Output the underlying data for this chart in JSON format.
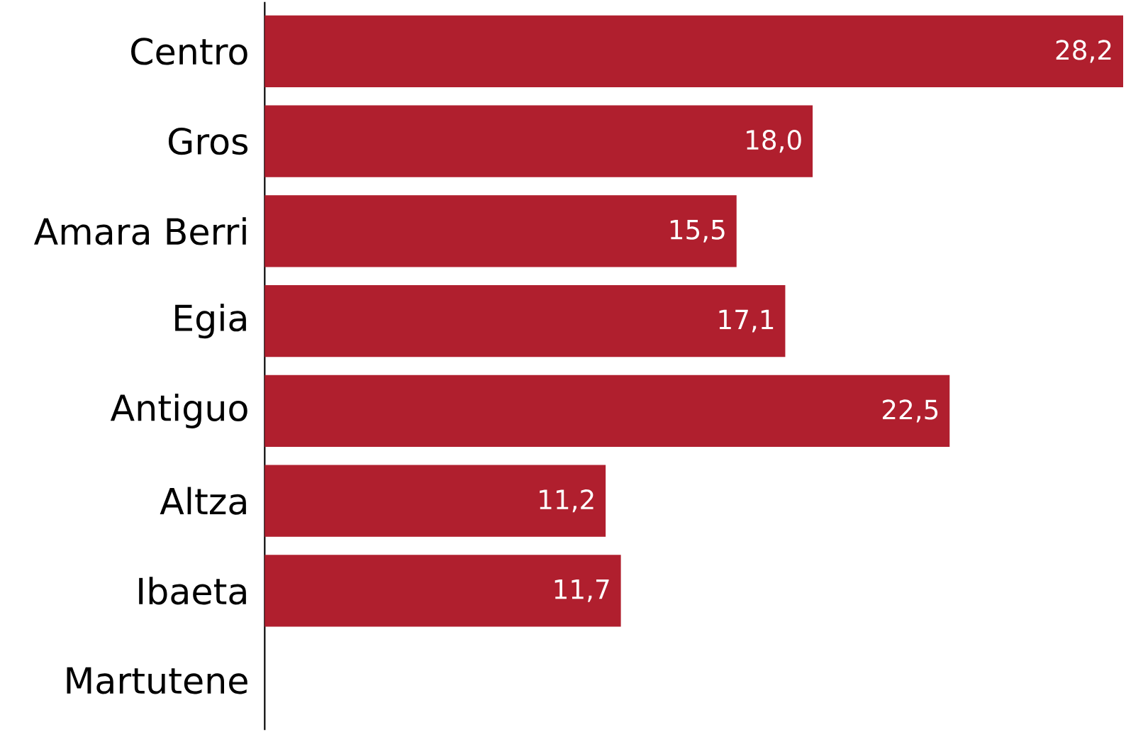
{
  "chart_data": {
    "type": "bar",
    "orientation": "horizontal",
    "categories": [
      "Centro",
      "Gros",
      "Amara Berri",
      "Egia",
      "Antiguo",
      "Altza",
      "Ibaeta",
      "Martutene"
    ],
    "values": [
      28.2,
      18.0,
      15.5,
      17.1,
      22.5,
      11.2,
      11.7,
      null
    ],
    "value_labels": [
      "28,2",
      "18,0",
      "15,5",
      "17,1",
      "22,5",
      "11,2",
      "11,7",
      null
    ],
    "color": "#b01f2e"
  }
}
